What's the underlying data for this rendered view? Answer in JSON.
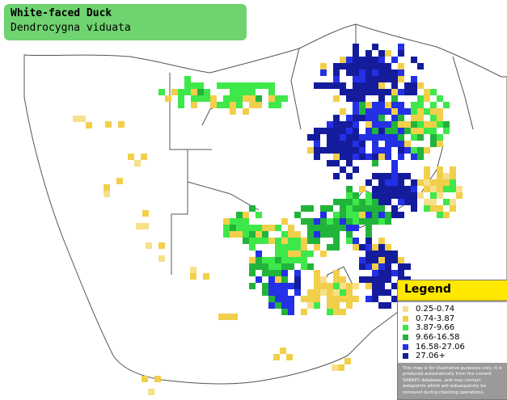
{
  "header": {
    "common_name": "White-faced Duck",
    "scientific_name": "Dendrocygna viduata"
  },
  "legend": {
    "title": "Legend",
    "items": [
      {
        "label": "0.25-0.74",
        "color": "#f6e08a"
      },
      {
        "label": "0.74-3.87",
        "color": "#f2cf4a"
      },
      {
        "label": "3.87-9.66",
        "color": "#3ee84a"
      },
      {
        "label": "9.66-16.58",
        "color": "#22b43a"
      },
      {
        "label": "16.58-27.06",
        "color": "#2430e6"
      },
      {
        "label": "27.06+",
        "color": "#141c9c"
      }
    ],
    "disclaimer": "This map is for illustrative purposes only; it is produced automatically from the current SABAP2 database, and may contain datapoints which will subsequently be removed during checking operations."
  },
  "colors": {
    "title_box": "#6fd36f",
    "legend_header": "#ffe800",
    "border_lines": "#555555"
  }
}
